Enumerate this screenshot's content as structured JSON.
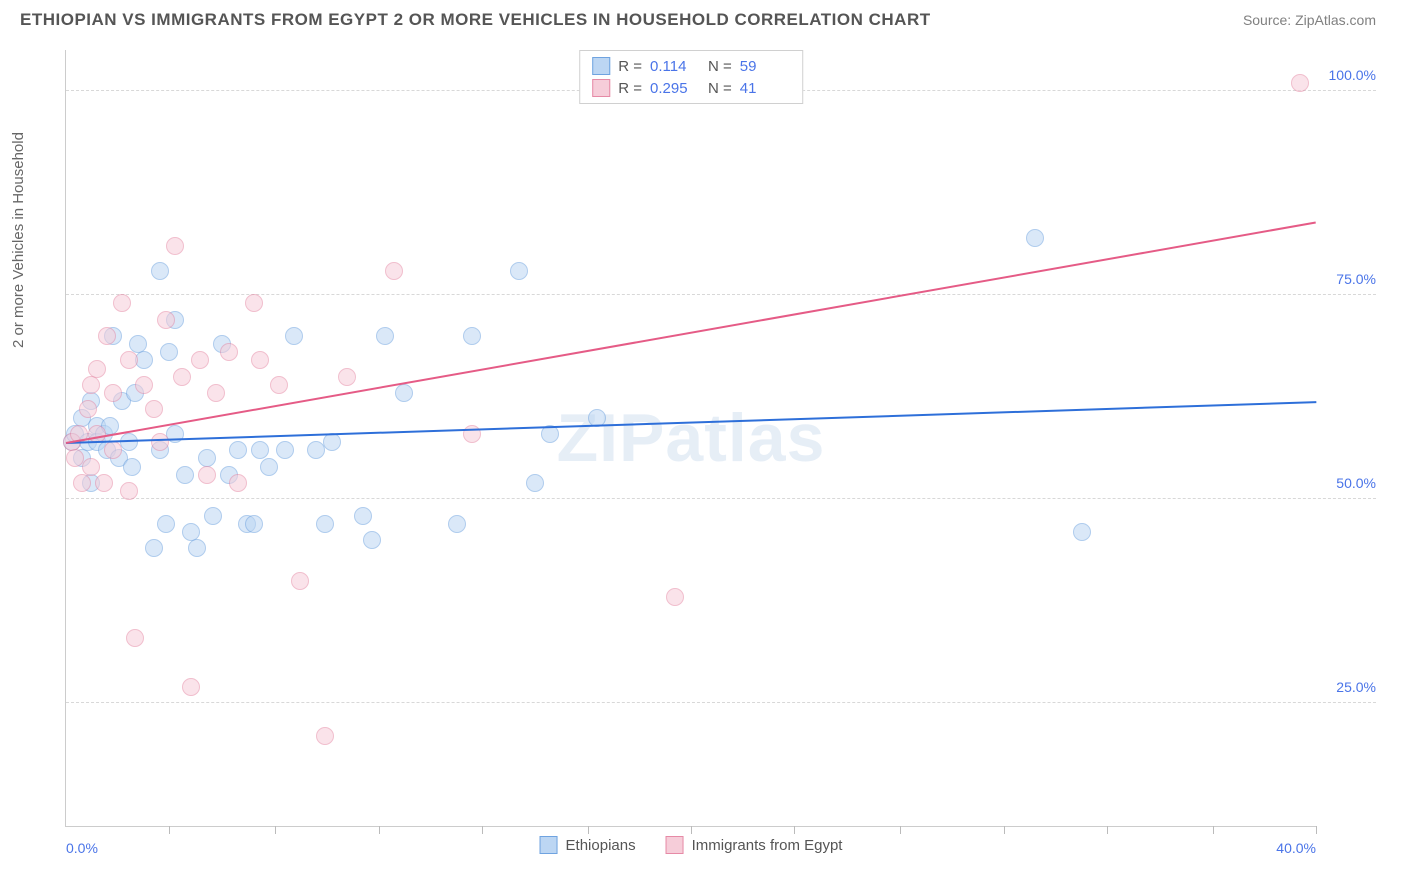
{
  "title": "ETHIOPIAN VS IMMIGRANTS FROM EGYPT 2 OR MORE VEHICLES IN HOUSEHOLD CORRELATION CHART",
  "source": "Source: ZipAtlas.com",
  "watermark": "ZIPatlas",
  "ylabel": "2 or more Vehicles in Household",
  "chart": {
    "type": "scatter",
    "xlim": [
      0,
      40
    ],
    "ylim": [
      10,
      105
    ],
    "xticks_minor": [
      3.3,
      6.7,
      10,
      13.3,
      16.7,
      20,
      23.3,
      26.7,
      30,
      33.3,
      36.7,
      40
    ],
    "xtick_labels": [
      {
        "x": 0,
        "label": "0.0%",
        "align": "left"
      },
      {
        "x": 40,
        "label": "40.0%",
        "align": "right"
      }
    ],
    "yticks": [
      {
        "y": 25,
        "label": "25.0%"
      },
      {
        "y": 50,
        "label": "50.0%"
      },
      {
        "y": 75,
        "label": "75.0%"
      },
      {
        "y": 100,
        "label": "100.0%"
      }
    ],
    "background_color": "#ffffff",
    "grid_color": "#d8d8d8",
    "marker_radius": 9,
    "marker_opacity": 0.55,
    "series": [
      {
        "name": "Ethiopians",
        "key": "ethiopians",
        "color_fill": "#bcd6f3",
        "color_stroke": "#6fa3e0",
        "line_color": "#2e6fd9",
        "R": "0.114",
        "N": "59",
        "regression": {
          "x1": 0,
          "y1": 57,
          "x2": 40,
          "y2": 62
        },
        "points": [
          [
            0.2,
            57
          ],
          [
            0.3,
            58
          ],
          [
            0.5,
            55
          ],
          [
            0.5,
            60
          ],
          [
            0.7,
            57
          ],
          [
            0.8,
            52
          ],
          [
            0.8,
            62
          ],
          [
            1.0,
            59
          ],
          [
            1.0,
            57
          ],
          [
            1.2,
            58
          ],
          [
            1.3,
            56
          ],
          [
            1.4,
            59
          ],
          [
            1.5,
            70
          ],
          [
            1.7,
            55
          ],
          [
            1.8,
            62
          ],
          [
            2.0,
            57
          ],
          [
            2.1,
            54
          ],
          [
            2.2,
            63
          ],
          [
            2.3,
            69
          ],
          [
            2.5,
            67
          ],
          [
            2.8,
            44
          ],
          [
            3.0,
            78
          ],
          [
            3.0,
            56
          ],
          [
            3.2,
            47
          ],
          [
            3.3,
            68
          ],
          [
            3.5,
            58
          ],
          [
            3.5,
            72
          ],
          [
            3.8,
            53
          ],
          [
            4.0,
            46
          ],
          [
            4.2,
            44
          ],
          [
            4.5,
            55
          ],
          [
            4.7,
            48
          ],
          [
            5.0,
            69
          ],
          [
            5.2,
            53
          ],
          [
            5.5,
            56
          ],
          [
            5.8,
            47
          ],
          [
            6.0,
            47
          ],
          [
            6.2,
            56
          ],
          [
            6.5,
            54
          ],
          [
            7.0,
            56
          ],
          [
            7.3,
            70
          ],
          [
            8.0,
            56
          ],
          [
            8.3,
            47
          ],
          [
            8.5,
            57
          ],
          [
            9.5,
            48
          ],
          [
            9.8,
            45
          ],
          [
            10.2,
            70
          ],
          [
            10.8,
            63
          ],
          [
            12.5,
            47
          ],
          [
            13.0,
            70
          ],
          [
            14.5,
            78
          ],
          [
            15.0,
            52
          ],
          [
            15.5,
            58
          ],
          [
            17.0,
            60
          ],
          [
            31.0,
            82
          ],
          [
            32.5,
            46
          ]
        ]
      },
      {
        "name": "Immigrants from Egypt",
        "key": "egypt",
        "color_fill": "#f6cdd9",
        "color_stroke": "#e68aa6",
        "line_color": "#e55b86",
        "R": "0.295",
        "N": "41",
        "regression": {
          "x1": 0,
          "y1": 57,
          "x2": 40,
          "y2": 84
        },
        "points": [
          [
            0.2,
            57
          ],
          [
            0.3,
            55
          ],
          [
            0.4,
            58
          ],
          [
            0.5,
            52
          ],
          [
            0.7,
            61
          ],
          [
            0.8,
            54
          ],
          [
            0.8,
            64
          ],
          [
            1.0,
            58
          ],
          [
            1.0,
            66
          ],
          [
            1.2,
            52
          ],
          [
            1.3,
            70
          ],
          [
            1.5,
            56
          ],
          [
            1.5,
            63
          ],
          [
            1.8,
            74
          ],
          [
            2.0,
            67
          ],
          [
            2.0,
            51
          ],
          [
            2.2,
            33
          ],
          [
            2.5,
            64
          ],
          [
            2.8,
            61
          ],
          [
            3.0,
            57
          ],
          [
            3.2,
            72
          ],
          [
            3.5,
            81
          ],
          [
            3.7,
            65
          ],
          [
            4.0,
            27
          ],
          [
            4.3,
            67
          ],
          [
            4.5,
            53
          ],
          [
            4.8,
            63
          ],
          [
            5.2,
            68
          ],
          [
            5.5,
            52
          ],
          [
            6.0,
            74
          ],
          [
            6.2,
            67
          ],
          [
            6.8,
            64
          ],
          [
            7.5,
            40
          ],
          [
            8.3,
            21
          ],
          [
            9.0,
            65
          ],
          [
            10.5,
            78
          ],
          [
            13.0,
            58
          ],
          [
            19.5,
            38
          ],
          [
            39.5,
            101
          ]
        ]
      }
    ]
  },
  "bottom_legend": [
    {
      "key": "ethiopians",
      "label": "Ethiopians"
    },
    {
      "key": "egypt",
      "label": "Immigrants from Egypt"
    }
  ]
}
